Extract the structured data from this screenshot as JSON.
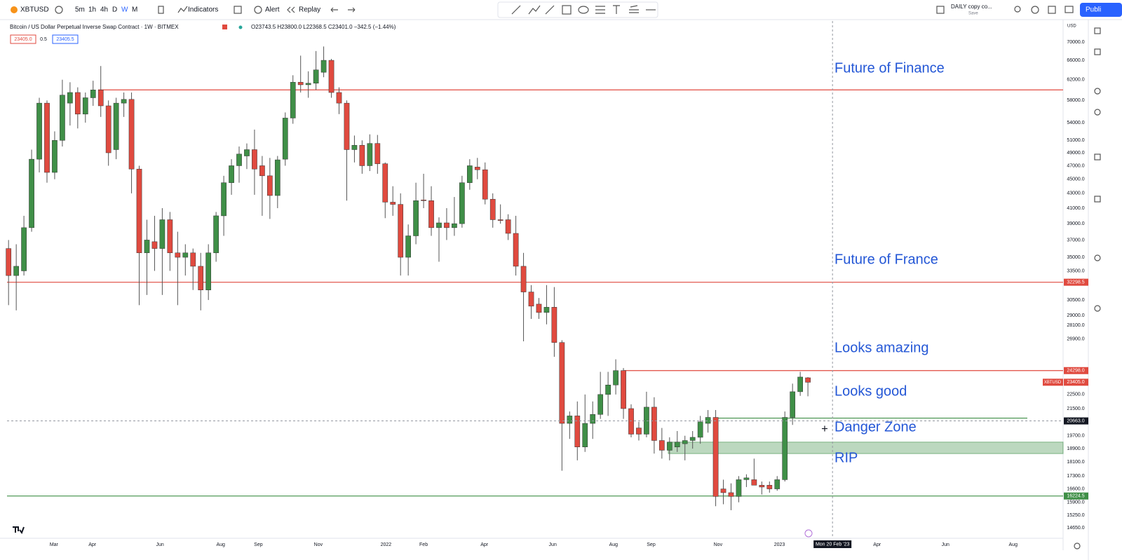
{
  "toolbar": {
    "symbol": "XBTUSD",
    "intervals": [
      "5m",
      "1h",
      "4h",
      "D",
      "W",
      "M"
    ],
    "indicators": "Indicators",
    "alert": "Alert",
    "replay": "Replay",
    "layout_name": "DAILY copy co...",
    "layout_save": "Save",
    "publish": "Publi"
  },
  "legend": {
    "title": "Bitcoin / US Dollar Perpetual Inverse Swap Contract · 1W · BITMEX",
    "ohlc": "O23743.5 H23800.0 L22368.5 C23401.0 −342.5 (−1.44%)",
    "sell": "23405.0",
    "spread": "0.5",
    "buy": "23405.5"
  },
  "chart_data": {
    "type": "candlestick",
    "currency": "USD",
    "log_scale": true,
    "xlim": [
      -0.2,
      137.2
    ],
    "ylim": [
      14160,
      74900
    ],
    "xticks": [
      {
        "value": 5.9,
        "label": "Mar"
      },
      {
        "value": 10.9,
        "label": "Apr"
      },
      {
        "value": 19.7,
        "label": "Jun"
      },
      {
        "value": 27.6,
        "label": "Aug"
      },
      {
        "value": 32.5,
        "label": "Sep"
      },
      {
        "value": 40.3,
        "label": "Nov"
      },
      {
        "value": 49.1,
        "label": "2022"
      },
      {
        "value": 54,
        "label": "Feb"
      },
      {
        "value": 61.9,
        "label": "Apr"
      },
      {
        "value": 70.8,
        "label": "Jun"
      },
      {
        "value": 78.7,
        "label": "Aug"
      },
      {
        "value": 83.6,
        "label": "Sep"
      },
      {
        "value": 92.3,
        "label": "Nov"
      },
      {
        "value": 100.3,
        "label": "2023"
      },
      {
        "value": 113,
        "label": "Apr"
      },
      {
        "value": 121.9,
        "label": "Jun"
      },
      {
        "value": 130.7,
        "label": "Aug"
      }
    ],
    "yticks": [
      {
        "value": 70000,
        "label": "70000.0"
      },
      {
        "value": 66000,
        "label": "66000.0"
      },
      {
        "value": 62000,
        "label": "62000.0"
      },
      {
        "value": 58000,
        "label": "58000.0"
      },
      {
        "value": 54000,
        "label": "54000.0"
      },
      {
        "value": 51000,
        "label": "51000.0"
      },
      {
        "value": 49000,
        "label": "49000.0"
      },
      {
        "value": 47000,
        "label": "47000.0"
      },
      {
        "value": 45000,
        "label": "45000.0"
      },
      {
        "value": 43000,
        "label": "43000.0"
      },
      {
        "value": 41000,
        "label": "41000.0"
      },
      {
        "value": 39000,
        "label": "39000.0"
      },
      {
        "value": 37000,
        "label": "37000.0"
      },
      {
        "value": 35000,
        "label": "35000.0"
      },
      {
        "value": 33500,
        "label": "33500.0"
      },
      {
        "value": 30500,
        "label": "30500.0"
      },
      {
        "value": 29000,
        "label": "29000.0"
      },
      {
        "value": 28100,
        "label": "28100.0"
      },
      {
        "value": 26900,
        "label": "26900.0"
      },
      {
        "value": 22500,
        "label": "22500.0"
      },
      {
        "value": 21500,
        "label": "21500.0"
      },
      {
        "value": 19700,
        "label": "19700.0"
      },
      {
        "value": 18900,
        "label": "18900.0"
      },
      {
        "value": 18100,
        "label": "18100.0"
      },
      {
        "value": 17300,
        "label": "17300.0"
      },
      {
        "value": 16600,
        "label": "16600.0"
      },
      {
        "value": 15900,
        "label": "15900.0"
      },
      {
        "value": 15250,
        "label": "15250.0"
      },
      {
        "value": 14650,
        "label": "14650.0"
      }
    ],
    "up_color": "#3f8f47",
    "down_color": "#e04a3f",
    "open": [
      36000,
      33000,
      33500,
      38500,
      48000,
      57500,
      46000,
      51000,
      57500,
      59500,
      55500,
      58500,
      60000,
      57000,
      49500,
      57500,
      58200,
      46500,
      35500,
      36800,
      36000,
      39500,
      35500,
      35000,
      35500,
      34000,
      31500,
      35500,
      40000,
      44500,
      47000,
      48500,
      49500,
      47000,
      45500,
      42700,
      48000,
      54800,
      61500,
      61000,
      61300,
      63500,
      66000,
      59500,
      57500,
      49500,
      50200,
      47000,
      50500,
      47300,
      41800,
      41500,
      35000,
      37500,
      42100,
      42000,
      38500,
      39100,
      38500,
      39000,
      44500,
      46800,
      46400,
      42200,
      39500,
      39500,
      37800,
      34000,
      31300,
      30100,
      29300,
      29800,
      26600,
      20500,
      21000,
      19000,
      20500,
      21100,
      22500,
      23200,
      24300,
      21500,
      20200,
      19800,
      21600,
      19400,
      18800,
      19000,
      19200,
      19400,
      19600,
      20500,
      20900,
      16600,
      16400,
      16200,
      17100,
      17100,
      16800,
      16800,
      16600,
      17100,
      20900,
      22700,
      23743.5
    ],
    "high": [
      37000,
      36500,
      40000,
      49500,
      58500,
      58000,
      52500,
      62000,
      61500,
      60500,
      59500,
      61800,
      64800,
      58000,
      58500,
      59500,
      59500,
      47000,
      39500,
      40000,
      41000,
      40500,
      38000,
      36500,
      36000,
      35500,
      36500,
      40500,
      45500,
      48000,
      50000,
      50500,
      52800,
      48500,
      48200,
      48500,
      55800,
      62900,
      67000,
      63700,
      68000,
      69000,
      66300,
      60500,
      58000,
      51800,
      51000,
      52000,
      51900,
      47500,
      44000,
      43000,
      38900,
      44500,
      45800,
      44000,
      39800,
      41000,
      42500,
      45500,
      48000,
      48200,
      47500,
      43000,
      41500,
      40200,
      40000,
      35500,
      32000,
      30700,
      32000,
      31800,
      26800,
      21300,
      22000,
      22500,
      22000,
      24200,
      24200,
      25200,
      24500,
      21800,
      20600,
      22700,
      22300,
      20200,
      19600,
      20000,
      19700,
      20000,
      21000,
      21400,
      21400,
      17100,
      16900,
      17300,
      17400,
      18300,
      17000,
      17000,
      17300,
      21300,
      23300,
      24200,
      23800
    ],
    "low": [
      30000,
      29500,
      33000,
      38000,
      46000,
      44500,
      45000,
      50000,
      53500,
      53000,
      54000,
      57000,
      55000,
      47000,
      48000,
      55000,
      43000,
      30000,
      31000,
      33500,
      31000,
      33500,
      30000,
      33000,
      31500,
      29500,
      30500,
      34500,
      37500,
      42800,
      44500,
      46500,
      42800,
      40000,
      39600,
      41000,
      47000,
      53800,
      59500,
      58500,
      60000,
      62500,
      58500,
      55500,
      42000,
      47500,
      45800,
      46200,
      45800,
      39700,
      40000,
      33000,
      33000,
      36500,
      41000,
      37500,
      34500,
      37000,
      37500,
      38500,
      43500,
      45000,
      41500,
      38500,
      39000,
      37000,
      33000,
      26700,
      28700,
      28700,
      28200,
      25400,
      17600,
      19500,
      18200,
      18700,
      19500,
      20800,
      21000,
      22500,
      20800,
      19600,
      19400,
      19600,
      18600,
      18300,
      18200,
      18700,
      18200,
      18900,
      19200,
      19900,
      15700,
      15800,
      15500,
      15900,
      16700,
      16800,
      16300,
      16400,
      16500,
      17000,
      20400,
      22400,
      22368.5
    ],
    "close": [
      33000,
      34000,
      38500,
      48000,
      57500,
      46000,
      51000,
      59000,
      59500,
      55500,
      58500,
      60000,
      57000,
      49000,
      57500,
      58200,
      46500,
      35500,
      37000,
      36000,
      39500,
      35500,
      35000,
      35500,
      34000,
      31500,
      35500,
      40000,
      44500,
      47000,
      48800,
      49500,
      46500,
      45500,
      42700,
      47900,
      54800,
      61500,
      61000,
      61300,
      64000,
      66000,
      59500,
      57500,
      49500,
      50200,
      47000,
      50500,
      47300,
      41800,
      41500,
      35000,
      37500,
      42000,
      42000,
      38500,
      39100,
      38500,
      39000,
      44500,
      47000,
      46400,
      42200,
      39500,
      39400,
      37800,
      34000,
      31300,
      29900,
      29300,
      29800,
      26600,
      20500,
      21000,
      19000,
      20500,
      21100,
      22500,
      23200,
      24300,
      21500,
      19800,
      19800,
      21600,
      19400,
      18800,
      19300,
      19300,
      19400,
      19600,
      20600,
      20900,
      16200,
      16400,
      16200,
      17100,
      17200,
      16800,
      16700,
      16600,
      17100,
      20900,
      22700,
      23800,
      23401
    ],
    "levels": [
      {
        "value": 60000,
        "color": "#e04a3f"
      },
      {
        "value": 32298.5,
        "label": "32298.5",
        "color": "#e04a3f"
      },
      {
        "value": 24298,
        "label": "24298.0",
        "color": "#e04a3f"
      },
      {
        "value": 20850,
        "color": "#3f8f47"
      },
      {
        "value": 16224.5,
        "label": "16224.5",
        "color": "#3f8f47"
      }
    ],
    "zone": {
      "low": 18600,
      "high": 19300,
      "color": "#3f8f47"
    },
    "last_price": {
      "value": 23405,
      "label": "23405.0",
      "name": "XBTUSD",
      "color": "#e04a3f"
    },
    "crosshair": {
      "x": 107.2,
      "y": 20663,
      "x_label": "Mon 20 Feb '23",
      "y_label": "20663.0"
    },
    "annotations": [
      "Future of Finance",
      "Future of France",
      "Looks amazing",
      "Looks good",
      "Danger Zone",
      "RIP"
    ]
  }
}
